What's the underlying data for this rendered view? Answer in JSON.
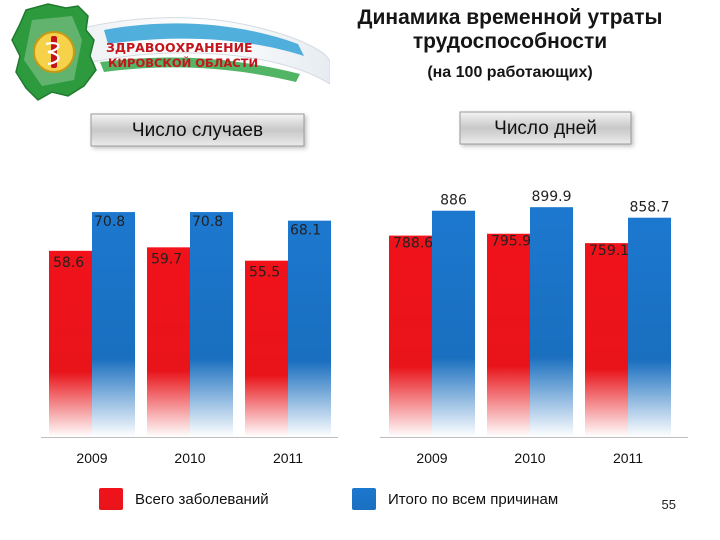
{
  "header": {
    "org_logo_lines": [
      "ЗДРАВООХРАНЕНИЕ",
      "КИРОВСКОЙ ОБЛАСТИ"
    ],
    "title_line1": "Динамика временной  утраты",
    "title_line2": "трудоспособности",
    "subtitle": "(на 100 работающих)"
  },
  "colors": {
    "series_red": "#e8141a",
    "series_blue": "#1a6fbf",
    "panel_gray": "#c8c8c8",
    "logo_green": "#2d9a3e"
  },
  "chart_data": [
    {
      "type": "bar",
      "title": "Число случаев",
      "categories": [
        "2009",
        "2010",
        "2011"
      ],
      "series": [
        {
          "name": "Всего заболеваний",
          "values": [
            58.6,
            59.7,
            55.5
          ]
        },
        {
          "name": "Итого по всем причинам",
          "values": [
            70.8,
            70.8,
            68.1
          ]
        }
      ],
      "value_labels": [
        [
          "58.6",
          "59.7",
          "55.5"
        ],
        [
          "70.8",
          "70.8",
          "68.1"
        ]
      ],
      "ylim": [
        0,
        74.6
      ],
      "grid": false,
      "legend": "bottom"
    },
    {
      "type": "bar",
      "title": "Число дней",
      "categories": [
        "2009",
        "2010",
        "2011"
      ],
      "series": [
        {
          "name": "Всего заболеваний",
          "values": [
            788.6,
            795.9,
            759.1
          ]
        },
        {
          "name": "Итого по всем причинам",
          "values": [
            886,
            899.9,
            858.7
          ]
        }
      ],
      "value_labels": [
        [
          "788.6",
          "795.9",
          "759.1"
        ],
        [
          "886",
          "899.9",
          "858.7"
        ]
      ],
      "ylim": [
        0,
        928
      ],
      "grid": false,
      "legend": "bottom"
    }
  ],
  "legend": {
    "items": [
      {
        "label": "Всего заболеваний",
        "color": "#e8141a"
      },
      {
        "label": "Итого по всем причинам",
        "color": "#1a6fbf"
      }
    ]
  },
  "footer": {
    "page_number": "55"
  }
}
